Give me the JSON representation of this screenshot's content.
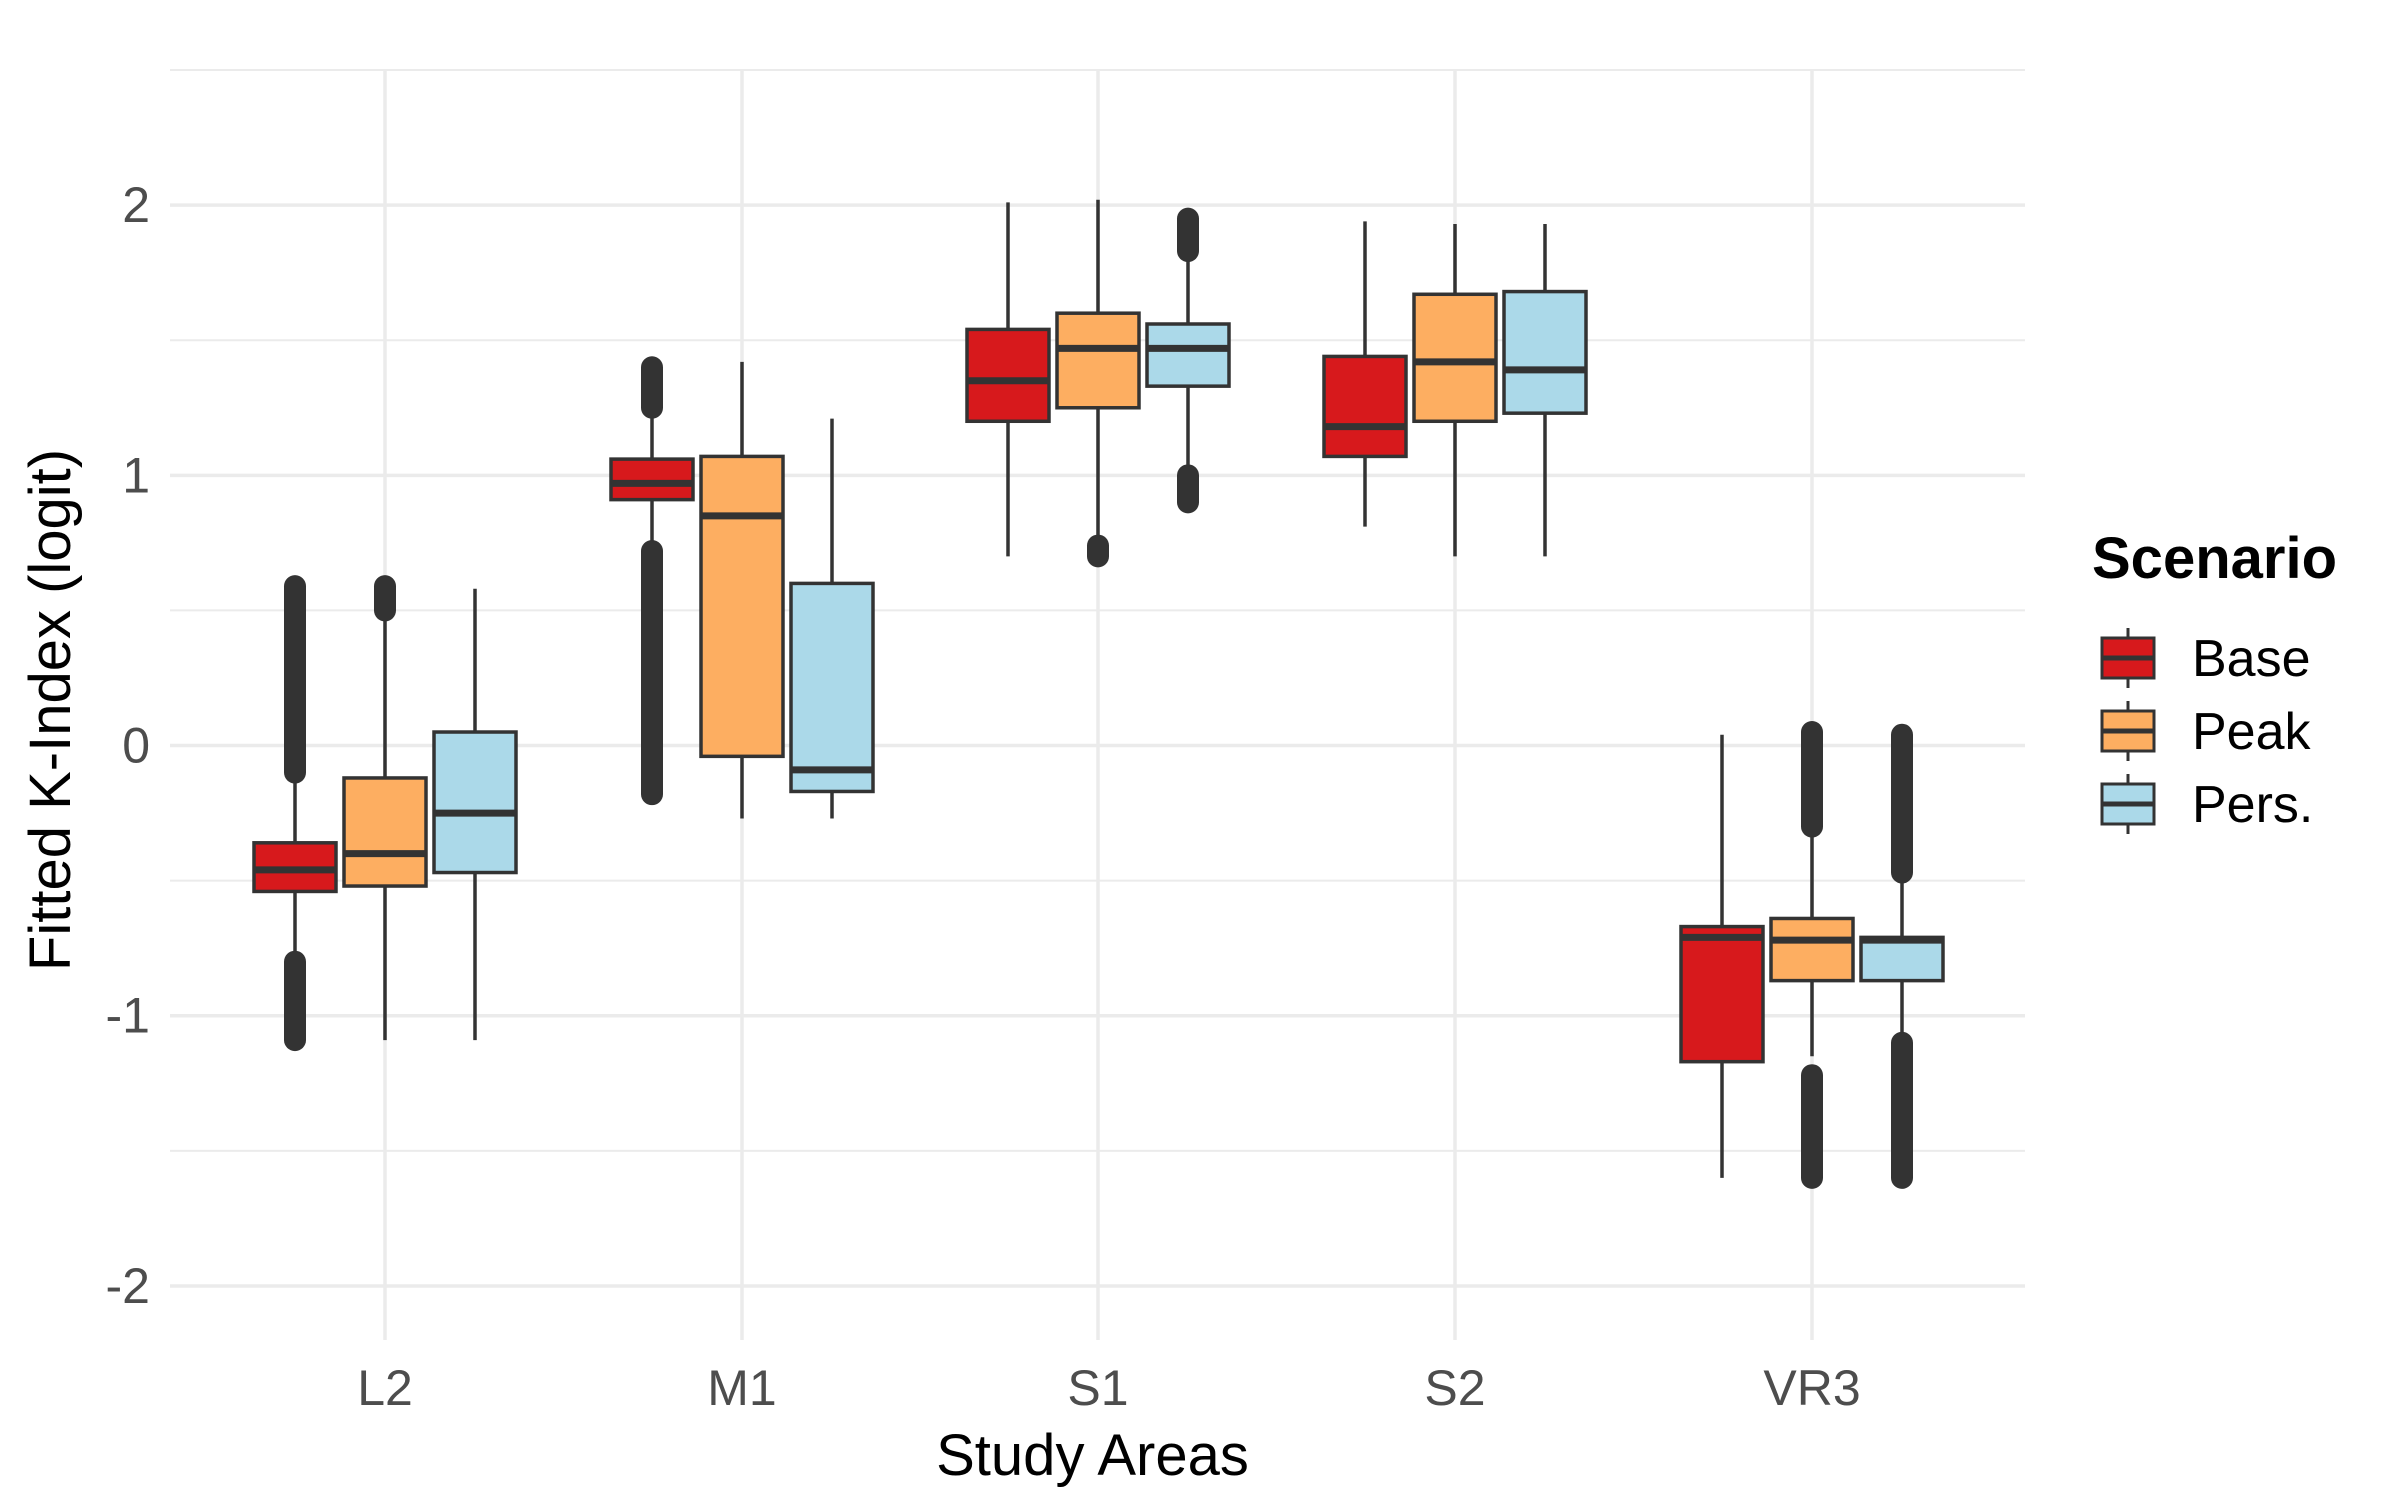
{
  "chart_data": {
    "type": "box",
    "xlabel": "Study Areas",
    "ylabel": "Fitted K-Index (logit)",
    "categories": [
      "L2",
      "M1",
      "S1",
      "S2",
      "VR3"
    ],
    "ylim": [
      -2.2,
      2.5
    ],
    "yticks": [
      -2,
      -1,
      0,
      1,
      2
    ],
    "grid": true,
    "legend": {
      "title": "Scenario",
      "position": "right",
      "entries": [
        "Base",
        "Peak",
        "Pers."
      ]
    },
    "colors": {
      "Base": "#d7191c",
      "Peak": "#fdae61",
      "Pers.": "#abd9e9",
      "outline": "#333333",
      "grid": "#ebebeb"
    },
    "series": [
      {
        "name": "Base",
        "boxes": [
          {
            "category": "L2",
            "whisker_low": -0.8,
            "q1": -0.54,
            "median": -0.46,
            "q3": -0.36,
            "whisker_high": -0.1,
            "outliers_low": [
              -1.09,
              -0.8
            ],
            "outliers_high": [
              -0.1,
              0.59
            ]
          },
          {
            "category": "M1",
            "whisker_low": 0.72,
            "q1": 0.91,
            "median": 0.97,
            "q3": 1.06,
            "whisker_high": 1.25,
            "outliers_low": [
              -0.18,
              0.72
            ],
            "outliers_high": [
              1.25,
              1.4
            ]
          },
          {
            "category": "S1",
            "whisker_low": 0.7,
            "q1": 1.2,
            "median": 1.35,
            "q3": 1.54,
            "whisker_high": 2.01
          },
          {
            "category": "S2",
            "whisker_low": 0.81,
            "q1": 1.07,
            "median": 1.18,
            "q3": 1.44,
            "whisker_high": 1.94
          },
          {
            "category": "VR3",
            "whisker_low": -1.6,
            "q1": -1.17,
            "median": -0.71,
            "q3": -0.67,
            "whisker_high": 0.04
          }
        ]
      },
      {
        "name": "Peak",
        "boxes": [
          {
            "category": "L2",
            "whisker_low": -1.09,
            "q1": -0.52,
            "median": -0.4,
            "q3": -0.12,
            "whisker_high": 0.48,
            "outliers_high": [
              0.5,
              0.59
            ]
          },
          {
            "category": "M1",
            "whisker_low": -0.27,
            "q1": -0.04,
            "median": 0.85,
            "q3": 1.07,
            "whisker_high": 1.42
          },
          {
            "category": "S1",
            "whisker_low": 0.75,
            "q1": 1.25,
            "median": 1.47,
            "q3": 1.6,
            "whisker_high": 2.02,
            "outliers_low": [
              0.7,
              0.74
            ]
          },
          {
            "category": "S2",
            "whisker_low": 0.7,
            "q1": 1.2,
            "median": 1.42,
            "q3": 1.67,
            "whisker_high": 1.93
          },
          {
            "category": "VR3",
            "whisker_low": -1.15,
            "q1": -0.87,
            "median": -0.72,
            "q3": -0.64,
            "whisker_high": -0.3,
            "outliers_low": [
              -1.6,
              -1.22
            ],
            "outliers_high": [
              -0.3,
              0.05
            ]
          }
        ]
      },
      {
        "name": "Pers.",
        "boxes": [
          {
            "category": "L2",
            "whisker_low": -1.09,
            "q1": -0.47,
            "median": -0.25,
            "q3": 0.05,
            "whisker_high": 0.58
          },
          {
            "category": "M1",
            "whisker_low": -0.27,
            "q1": -0.17,
            "median": -0.09,
            "q3": 0.6,
            "whisker_high": 1.21
          },
          {
            "category": "S1",
            "whisker_low": 1.02,
            "q1": 1.33,
            "median": 1.47,
            "q3": 1.56,
            "whisker_high": 1.8,
            "outliers_low": [
              0.9,
              1.0
            ],
            "outliers_high": [
              1.83,
              1.95
            ]
          },
          {
            "category": "S2",
            "whisker_low": 0.7,
            "q1": 1.23,
            "median": 1.39,
            "q3": 1.68,
            "whisker_high": 1.93
          },
          {
            "category": "VR3",
            "whisker_low": -1.08,
            "q1": -0.87,
            "median": -0.72,
            "q3": -0.71,
            "whisker_high": -0.47,
            "outliers_low": [
              -1.6,
              -1.1
            ],
            "outliers_high": [
              -0.47,
              0.04
            ]
          }
        ]
      }
    ]
  }
}
